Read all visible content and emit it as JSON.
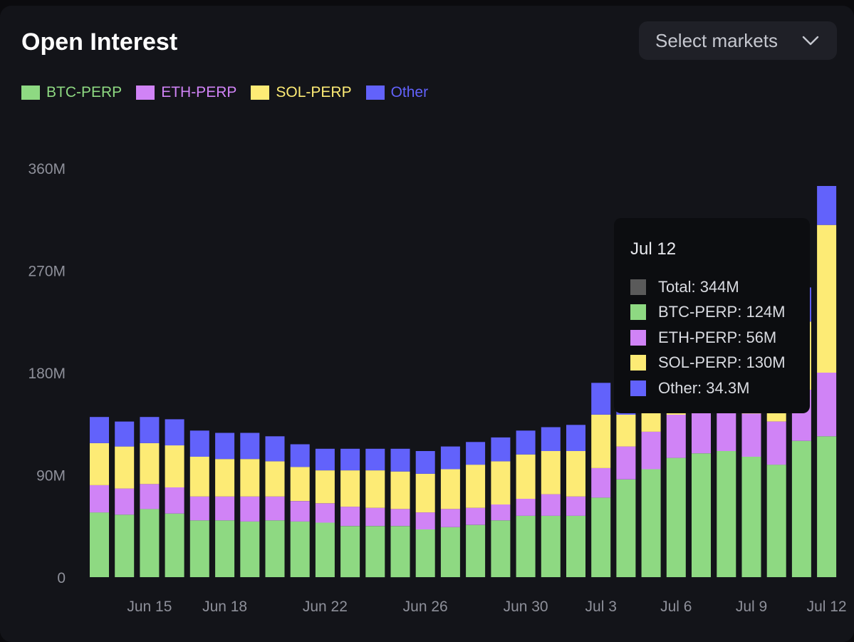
{
  "header": {
    "title": "Open Interest",
    "select_label": "Select markets"
  },
  "colors": {
    "btc": "#8ed982",
    "eth": "#d083f6",
    "sol": "#fdeb75",
    "other": "#6262fb",
    "total": "#5a5a5a",
    "axis_text": "#8e909a"
  },
  "legend": [
    {
      "label": "BTC-PERP",
      "color": "#8ed982"
    },
    {
      "label": "ETH-PERP",
      "color": "#d083f6"
    },
    {
      "label": "SOL-PERP",
      "color": "#fdeb75"
    },
    {
      "label": "Other",
      "color": "#6262fb"
    }
  ],
  "tooltip": {
    "date": "Jul 12",
    "rows": [
      {
        "label": "Total: 344M",
        "color": "#5a5a5a"
      },
      {
        "label": "BTC-PERP: 124M",
        "color": "#8ed982"
      },
      {
        "label": "ETH-PERP: 56M",
        "color": "#d083f6"
      },
      {
        "label": "SOL-PERP: 130M",
        "color": "#fdeb75"
      },
      {
        "label": "Other: 34.3M",
        "color": "#6262fb"
      }
    ]
  },
  "chart_data": {
    "type": "bar",
    "stacked": true,
    "title": "Open Interest",
    "x": [
      "Jun 13",
      "Jun 14",
      "Jun 15",
      "Jun 16",
      "Jun 17",
      "Jun 18",
      "Jun 19",
      "Jun 20",
      "Jun 21",
      "Jun 22",
      "Jun 23",
      "Jun 24",
      "Jun 25",
      "Jun 26",
      "Jun 27",
      "Jun 28",
      "Jun 29",
      "Jun 30",
      "Jul 1",
      "Jul 2",
      "Jul 3",
      "Jul 4",
      "Jul 5",
      "Jul 6",
      "Jul 7",
      "Jul 8",
      "Jul 9",
      "Jul 10",
      "Jul 11",
      "Jul 12"
    ],
    "x_tick_labels": [
      "Jun 15",
      "Jun 18",
      "Jun 22",
      "Jun 26",
      "Jun 30",
      "Jul 3",
      "Jul 6",
      "Jul 9",
      "Jul 12"
    ],
    "y_tick_labels": [
      "0",
      "90M",
      "180M",
      "270M",
      "360M"
    ],
    "ylim": [
      0,
      360
    ],
    "y_unit": "M",
    "series": [
      {
        "name": "BTC-PERP",
        "color": "#8ed982",
        "values": [
          57,
          55,
          60,
          56,
          50,
          50,
          49,
          50,
          49,
          48,
          45,
          45,
          45,
          42,
          44,
          46,
          50,
          54,
          54,
          54,
          70,
          86,
          95,
          105,
          109,
          111,
          106,
          99,
          120,
          124
        ]
      },
      {
        "name": "ETH-PERP",
        "color": "#d083f6",
        "values": [
          24,
          23,
          22,
          23,
          21,
          21,
          22,
          21,
          18,
          17,
          17,
          16,
          15,
          15,
          16,
          15,
          14,
          15,
          19,
          17,
          26,
          29,
          33,
          38,
          40,
          37,
          38,
          38,
          45,
          56
        ]
      },
      {
        "name": "SOL-PERP",
        "color": "#fdeb75",
        "values": [
          37,
          37,
          36,
          37,
          35,
          33,
          33,
          31,
          30,
          29,
          32,
          33,
          33,
          34,
          35,
          38,
          38,
          39,
          38,
          40,
          47,
          28,
          30,
          31,
          32,
          34,
          36,
          46,
          60,
          130
        ]
      },
      {
        "name": "Other",
        "color": "#6262fb",
        "values": [
          23,
          22,
          23,
          23,
          23,
          23,
          23,
          22,
          20,
          19,
          19,
          19,
          20,
          20,
          20,
          20,
          21,
          21,
          21,
          23,
          28,
          30,
          31,
          32,
          33,
          34,
          35,
          37,
          30,
          34.3
        ]
      }
    ]
  }
}
